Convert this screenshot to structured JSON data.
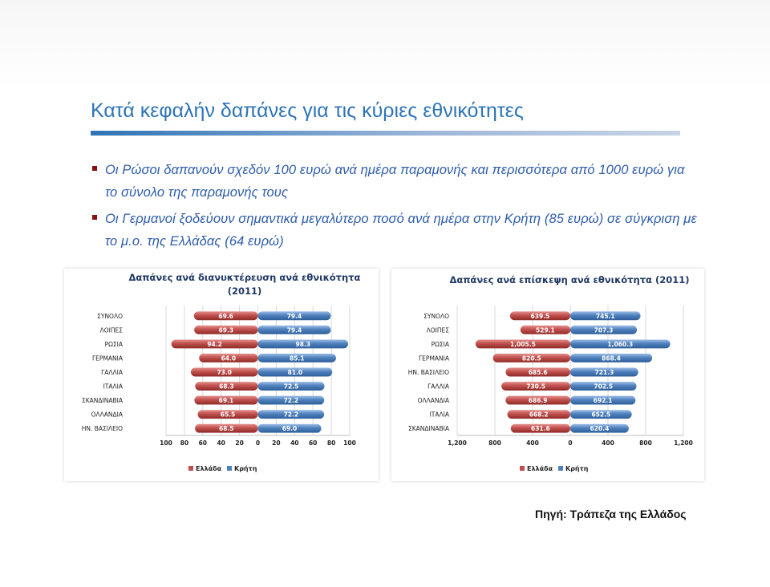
{
  "slide": {
    "title": "Κατά κεφαλήν δαπάνες για τις κύριες εθνικότητες",
    "bullets": [
      "Οι Ρώσοι δαπανούν σχεδόν 100 ευρώ ανά ημέρα παραμονής και περισσότερα από 1000 ευρώ για το σύνολο της παραμονής τους",
      "Οι Γερμανοί ξοδεύουν σημαντικά μεγαλύτερο ποσό ανά ημέρα στην Κρήτη (85 ευρώ) σε σύγκριση με το μ.ο. της Ελλάδας (64 ευρώ)"
    ],
    "source": "Πηγή: Τράπεζα της Ελλάδος"
  },
  "colors": {
    "greece": "#c0504d",
    "crete": "#4f81bd",
    "title": "#2e74b5",
    "chart_title": "#1f3864"
  },
  "chart_data": [
    {
      "type": "bar",
      "orientation": "horizontal-diverging",
      "title_lines": [
        "Δαπάνες ανά διανυκτέρευση ανά εθνικότητα",
        "(2011)"
      ],
      "categories": [
        "ΣΥΝΟΛΟ",
        "ΛΟΙΠΕΣ",
        "ΡΩΣΙΑ",
        "ΓΕΡΜΑΝΙΑ",
        "ΓΑΛΛΙΑ",
        "ΙΤΑΛΙΑ",
        "ΣΚΑΝΔΙΝΑΒΙΑ",
        "ΟΛΛΑΝΔΙΑ",
        "ΗΝ. ΒΑΣΙΛΕΙΟ"
      ],
      "series": [
        {
          "name": "Ελλάδα",
          "side": "left",
          "values": [
            69.6,
            69.3,
            94.2,
            64.0,
            73.0,
            68.3,
            69.1,
            65.5,
            68.5
          ],
          "labels": [
            "69.6",
            "69.3",
            "94.2",
            "64.0",
            "73.0",
            "68.3",
            "69.1",
            "65.5",
            "68.5"
          ]
        },
        {
          "name": "Κρήτη",
          "side": "right",
          "values": [
            79.4,
            79.4,
            98.3,
            85.1,
            81.0,
            72.5,
            72.2,
            72.2,
            69.0
          ],
          "labels": [
            "79.4",
            "79.4",
            "98.3",
            "85.1",
            "81.0",
            "72.5",
            "72.2",
            "72.2",
            "69.0"
          ]
        }
      ],
      "xlim": [
        -100,
        100
      ],
      "xticks": [
        -100,
        -80,
        -60,
        -40,
        -20,
        0,
        20,
        40,
        60,
        80,
        100
      ],
      "xtick_labels": [
        "100",
        "80",
        "60",
        "40",
        "20",
        "0",
        "20",
        "40",
        "60",
        "80",
        "100"
      ],
      "legend": "bottom"
    },
    {
      "type": "bar",
      "orientation": "horizontal-diverging",
      "title_lines": [
        "Δαπάνες ανά επίσκεψη ανά εθνικότητα (2011)"
      ],
      "categories": [
        "ΣΥΝΟΛΟ",
        "ΛΟΙΠΕΣ",
        "ΡΩΣΙΑ",
        "ΓΕΡΜΑΝΙΑ",
        "ΗΝ. ΒΑΣΙΛΕΙΟ",
        "ΓΑΛΛΙΑ",
        "ΟΛΛΑΝΔΙΑ",
        "ΙΤΑΛΙΑ",
        "ΣΚΑΝΔΙΝΑΒΙΑ"
      ],
      "series": [
        {
          "name": "Ελλάδα",
          "side": "left",
          "values": [
            639.5,
            529.1,
            1005.5,
            820.5,
            685.6,
            730.5,
            686.9,
            668.2,
            631.6
          ],
          "labels": [
            "639.5",
            "529.1",
            "1,005.5",
            "820.5",
            "685.6",
            "730.5",
            "686.9",
            "668.2",
            "631.6"
          ]
        },
        {
          "name": "Κρήτη",
          "side": "right",
          "values": [
            745.1,
            707.3,
            1060.3,
            868.4,
            721.3,
            702.5,
            692.1,
            652.5,
            620.4
          ],
          "labels": [
            "745.1",
            "707.3",
            "1,060.3",
            "868.4",
            "721.3",
            "702.5",
            "692.1",
            "652.5",
            "620.4"
          ]
        }
      ],
      "xlim": [
        -1200,
        1200
      ],
      "xticks": [
        -1200,
        -800,
        -400,
        0,
        400,
        800,
        1200
      ],
      "xtick_labels": [
        "1,200",
        "800",
        "400",
        "0",
        "400",
        "800",
        "1,200"
      ],
      "legend": "bottom"
    }
  ]
}
